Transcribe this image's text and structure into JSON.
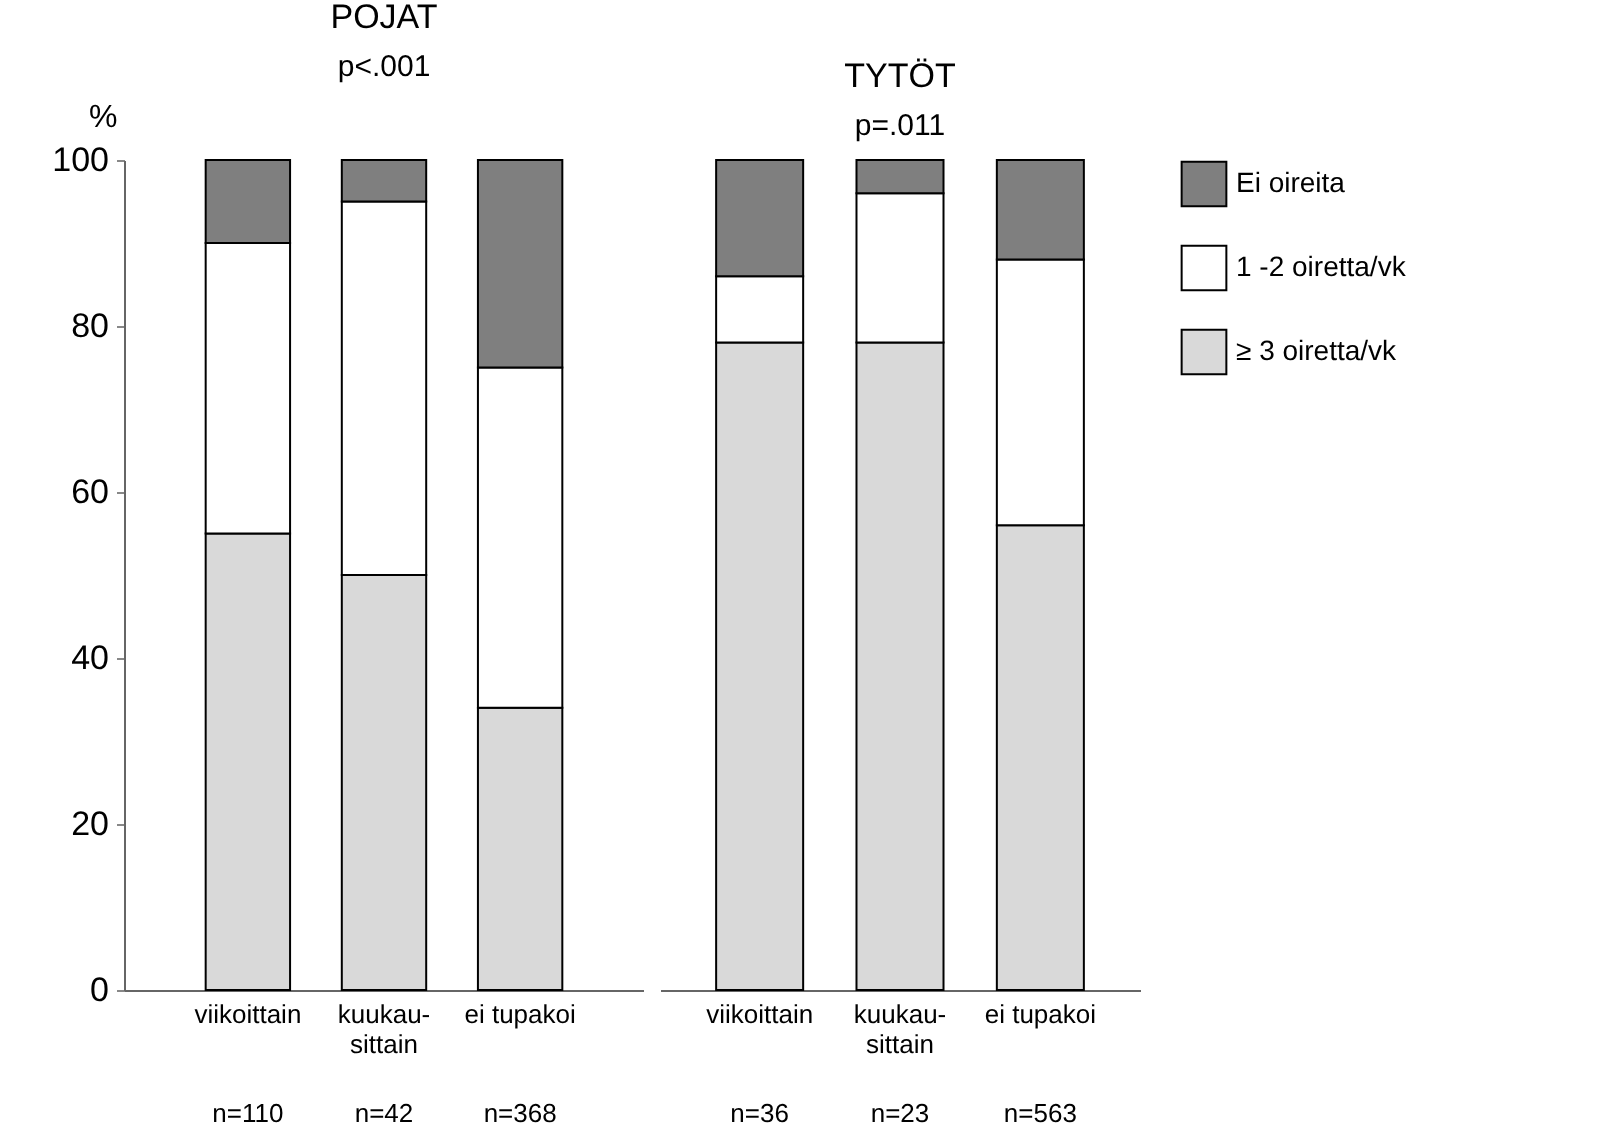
{
  "chart_data": [
    {
      "type": "bar",
      "title": "POJAT",
      "ylabel": "%",
      "stacked": true,
      "categories": [
        "viikoittain",
        "kuukau-\nsittain",
        "ei tupakoi"
      ],
      "series": [
        {
          "color": "#d9d9d9",
          "values": [
            55,
            50,
            34
          ]
        },
        {
          "color": "#ffffff",
          "values": [
            35,
            45,
            41
          ]
        },
        {
          "color": "#7f7f7f",
          "values": [
            10,
            5,
            25
          ]
        }
      ],
      "ylim": [
        0,
        100
      ],
      "yticks": [
        0,
        20,
        40,
        60,
        80,
        100
      ],
      "grid": false,
      "legend": false,
      "annotations": [
        "p<.001",
        "n=110",
        "n=42",
        "n=368"
      ]
    },
    {
      "type": "bar",
      "title": "TYTÖT",
      "stacked": true,
      "categories": [
        "viikoittain",
        "kuukau-\nsittain",
        "ei tupakoi"
      ],
      "series": [
        {
          "name": "≥ 3 oiretta/vk",
          "color": "#d9d9d9",
          "values": [
            78,
            78,
            56
          ]
        },
        {
          "name": "1 -2 oiretta/vk",
          "color": "#ffffff",
          "values": [
            8,
            18,
            32
          ]
        },
        {
          "name": "Ei oireita",
          "color": "#7f7f7f",
          "values": [
            14,
            4,
            12
          ]
        }
      ],
      "ylim": [
        0,
        100
      ],
      "yticks": [
        0,
        20,
        40,
        60,
        80,
        100
      ],
      "grid": false,
      "legend": "right",
      "tick_labels": "x",
      "annotations": [
        "p=.011",
        "n=36",
        "n=23",
        "n=563"
      ]
    }
  ]
}
